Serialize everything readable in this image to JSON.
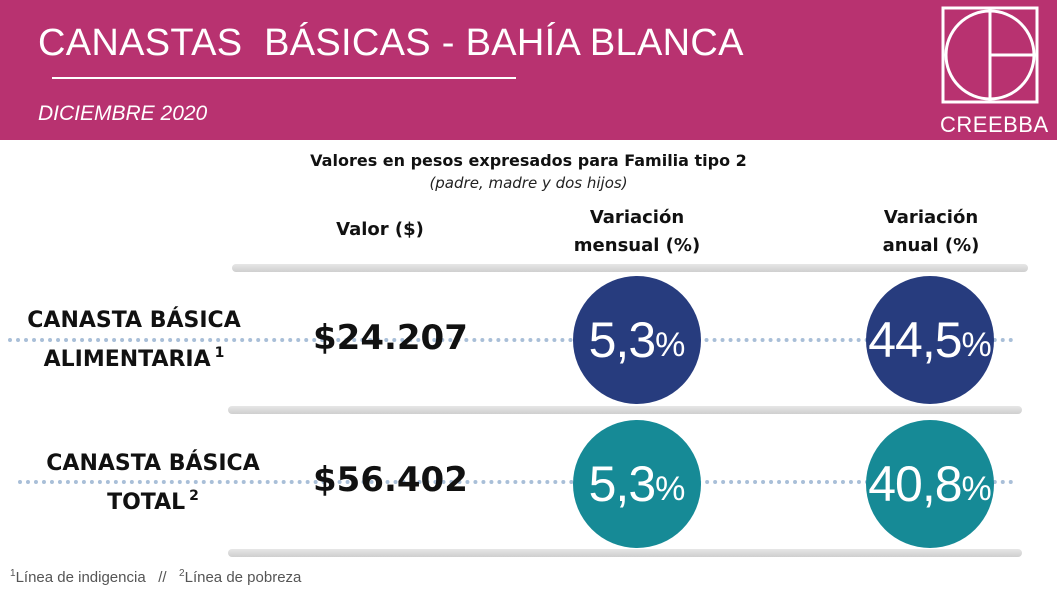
{
  "header": {
    "title": "CANASTAS  BÁSICAS - BAHÍA BLANCA",
    "date": "DICIEMBRE 2020",
    "logo_text": "CREEBBA"
  },
  "intro": {
    "line1": "Valores en pesos expresados para Familia tipo 2",
    "line2": "(padre, madre y dos hijos)"
  },
  "columns": {
    "valor": "Valor ($)",
    "mensual_line1": "Variación",
    "mensual_line2": "mensual (%)",
    "anual_line1": "Variación",
    "anual_line2": "anual (%)"
  },
  "rows": [
    {
      "label_line1": "CANASTA BÁSICA",
      "label_line2": "ALIMENTARIA",
      "note": "1",
      "value": "$24.207",
      "mensual": "5,3",
      "anual": "44,5",
      "color": "#273c7e"
    },
    {
      "label_line1": "CANASTA BÁSICA",
      "label_line2": "TOTAL",
      "note": "2",
      "value": "$56.402",
      "mensual": "5,3",
      "anual": "40,8",
      "color": "#168a96"
    }
  ],
  "percent_sign": "%",
  "footnotes": {
    "n1": "1",
    "text1": "Línea de indigencia",
    "sep": "//",
    "n2": "2",
    "text2": "Línea de pobreza"
  },
  "colors": {
    "header_bg": "#b83270",
    "alimentaria_circle": "#273c7e",
    "total_circle": "#168a96"
  }
}
